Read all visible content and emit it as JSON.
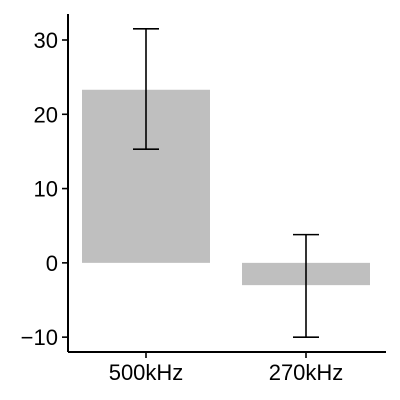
{
  "chart_data": {
    "type": "bar",
    "title": "",
    "xlabel": "",
    "ylabel": "",
    "categories": [
      "500kHz",
      "270kHz"
    ],
    "values": [
      23.3,
      -3.0
    ],
    "error_bars": [
      {
        "low": 15.3,
        "high": 31.5
      },
      {
        "low": -10.0,
        "high": 3.8
      }
    ],
    "ylim": [
      -12,
      33.5
    ],
    "yticks": [
      -10,
      0,
      10,
      20,
      30
    ],
    "ytick_labels": [
      "−10",
      "0",
      "10",
      "20",
      "30"
    ],
    "grid": false,
    "legend": "none",
    "bar_color": "#bfbfbf",
    "errorbar_color": "#000000",
    "axis_color": "#000000"
  }
}
